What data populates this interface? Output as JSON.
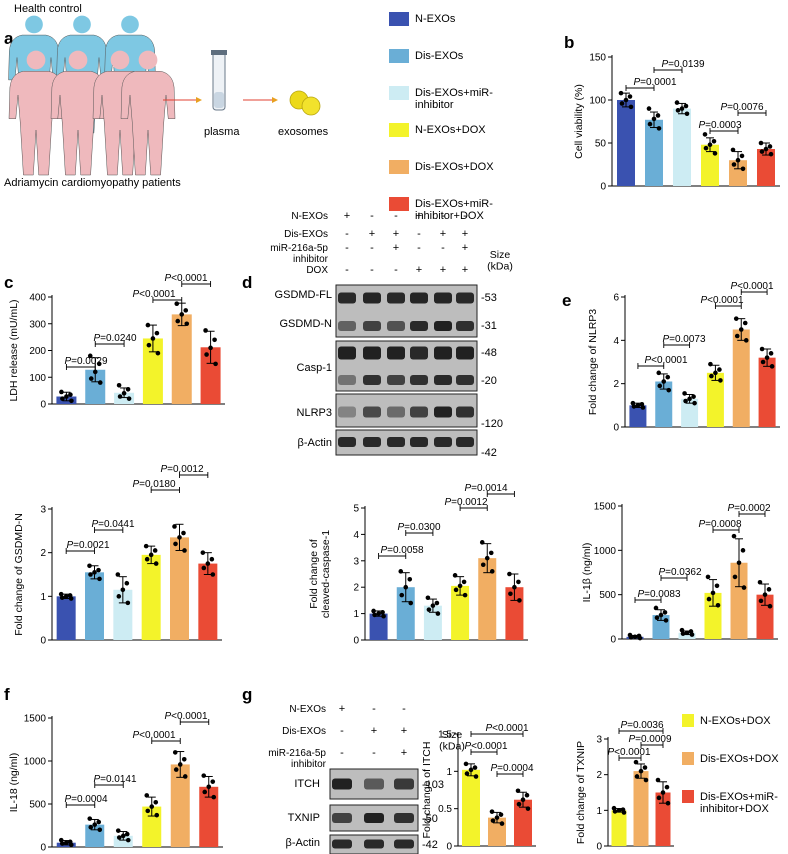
{
  "colors": {
    "n_exos": "#3a52b0",
    "dis_exos": "#6aaed6",
    "inhibitor": "#cdecf3",
    "n_dox": "#f3f32a",
    "dis_dox": "#f1ae63",
    "inh_dox": "#ea4b35",
    "blot_bg": "#bdbdbd",
    "band": "#181818"
  },
  "panel_letters": {
    "a": "a",
    "b": "b",
    "c": "c",
    "d": "d",
    "e": "e",
    "f": "f",
    "g": "g"
  },
  "panel_a": {
    "health_control": "Health control",
    "patients": "Adriamycin cardiomyopathy patients",
    "plasma": "plasma",
    "exosomes": "exosomes"
  },
  "legend_top": [
    {
      "label": "N-EXOs",
      "color": "#3a52b0"
    },
    {
      "label": "Dis-EXOs",
      "color": "#6aaed6"
    },
    {
      "label": "Dis-EXOs+miR-\ninhibitor",
      "color": "#cdecf3"
    },
    {
      "label": "N-EXOs+DOX",
      "color": "#f3f32a"
    },
    {
      "label": "Dis-EXOs+DOX",
      "color": "#f1ae63"
    },
    {
      "label": "Dis-EXOs+miR-\ninhibitor+DOX",
      "color": "#ea4b35"
    }
  ],
  "legend_g": [
    {
      "label": "N-EXOs+DOX",
      "color": "#f3f32a"
    },
    {
      "label": "Dis-EXOs+DOX",
      "color": "#f1ae63"
    },
    {
      "label": "Dis-EXOs+miR-\ninhibitor+DOX",
      "color": "#ea4b35"
    }
  ],
  "blot_d": {
    "conditions": [
      {
        "label": "N-EXOs",
        "marks": [
          "+",
          "-",
          "-",
          "+",
          "-",
          "-"
        ]
      },
      {
        "label": "Dis-EXOs",
        "marks": [
          "-",
          "+",
          "+",
          "-",
          "+",
          "+"
        ]
      },
      {
        "label": "miR-216a-5p\ninhibitor",
        "marks": [
          "-",
          "-",
          "+",
          "-",
          "-",
          "+"
        ]
      },
      {
        "label": "DOX",
        "marks": [
          "-",
          "-",
          "-",
          "+",
          "+",
          "+"
        ]
      }
    ],
    "size_header": "Size\n(kDa)",
    "proteins": [
      "GSDMD-FL",
      "GSDMD-N",
      "Casp-1",
      "NLRP3",
      "β-Actin"
    ],
    "sizes": [
      "-53",
      "-31",
      "-48",
      "-20",
      "-120",
      "-42"
    ]
  },
  "blot_g": {
    "conditions": [
      {
        "label": "N-EXOs",
        "marks": [
          "+",
          "-",
          "-"
        ]
      },
      {
        "label": "Dis-EXOs",
        "marks": [
          "-",
          "+",
          "+"
        ]
      },
      {
        "label": "miR-216a-5p\ninhibitor",
        "marks": [
          "-",
          "-",
          "+"
        ]
      }
    ],
    "size_header": "Size\n(kDa)",
    "proteins": [
      "ITCH",
      "TXNIP",
      "β-Actin"
    ],
    "sizes": [
      "-103",
      "-50",
      "-42"
    ]
  },
  "chart_data": [
    {
      "id": "b",
      "type": "bar",
      "ylabel": "Cell viability (%)",
      "ylim": [
        0,
        150
      ],
      "yticks": [
        0,
        50,
        100,
        150
      ],
      "categories": [
        "N-EXOs",
        "Dis-EXOs",
        "Dis-EXOs+miR-inhibitor",
        "N-EXOs+DOX",
        "Dis-EXOs+DOX",
        "Dis-EXOs+miR-inhibitor+DOX"
      ],
      "values": [
        100,
        77,
        90,
        48,
        30,
        43
      ],
      "errors": [
        8,
        9,
        6,
        8,
        10,
        7
      ],
      "points": [
        [
          108,
          104,
          100,
          96,
          92
        ],
        [
          90,
          82,
          78,
          72,
          67
        ],
        [
          97,
          93,
          90,
          88,
          84
        ],
        [
          60,
          52,
          48,
          44,
          38
        ],
        [
          42,
          35,
          30,
          25,
          20
        ],
        [
          50,
          46,
          43,
          40,
          37
        ]
      ],
      "annotations": [
        {
          "text": "P=0.0001",
          "from": 0,
          "to": 1
        },
        {
          "text": "P=0.0139",
          "from": 1,
          "to": 2
        },
        {
          "text": "P=0.0003",
          "from": 3,
          "to": 4
        },
        {
          "text": "P=0.0076",
          "from": 4,
          "to": 5
        }
      ]
    },
    {
      "id": "c",
      "type": "bar",
      "ylabel": "LDH release (mU/mL)",
      "ylim": [
        0,
        400
      ],
      "yticks": [
        0,
        100,
        200,
        300,
        400
      ],
      "categories": [
        "N-EXOs",
        "Dis-EXOs",
        "Dis-EXOs+miR-inhibitor",
        "N-EXOs+DOX",
        "Dis-EXOs+DOX",
        "Dis-EXOs+miR-inhibitor+DOX"
      ],
      "values": [
        28,
        128,
        42,
        245,
        335,
        212
      ],
      "errors": [
        16,
        45,
        18,
        50,
        42,
        60
      ],
      "points": [
        [
          45,
          35,
          28,
          20,
          12
        ],
        [
          180,
          150,
          120,
          95,
          80
        ],
        [
          70,
          55,
          40,
          28,
          20
        ],
        [
          295,
          265,
          245,
          220,
          190
        ],
        [
          375,
          350,
          335,
          310,
          300
        ],
        [
          275,
          240,
          210,
          185,
          150
        ]
      ],
      "annotations": [
        {
          "text": "P=0.0029",
          "from": 0,
          "to": 1
        },
        {
          "text": "P=0.0240",
          "from": 1,
          "to": 2
        },
        {
          "text": "P<0.0001",
          "from": 3,
          "to": 4
        },
        {
          "text": "P<0.0001",
          "from": 4,
          "to": 5
        }
      ]
    },
    {
      "id": "nlrp3",
      "type": "bar",
      "ylabel": "Fold change of NLRP3",
      "ylim": [
        0,
        6
      ],
      "yticks": [
        0,
        2,
        4,
        6
      ],
      "categories": [
        "N-EXOs",
        "Dis-EXOs",
        "Dis-EXOs+miR-inhibitor",
        "N-EXOs+DOX",
        "Dis-EXOs+DOX",
        "Dis-EXOs+miR-inhibitor+DOX"
      ],
      "values": [
        1.0,
        2.1,
        1.3,
        2.5,
        4.5,
        3.2
      ],
      "errors": [
        0.1,
        0.35,
        0.2,
        0.35,
        0.5,
        0.4
      ],
      "points": [
        [
          1.1,
          1.05,
          1.0,
          0.95,
          0.9
        ],
        [
          2.5,
          2.3,
          2.1,
          1.9,
          1.7
        ],
        [
          1.55,
          1.4,
          1.3,
          1.2,
          1.1
        ],
        [
          2.9,
          2.65,
          2.5,
          2.35,
          2.15
        ],
        [
          5.0,
          4.8,
          4.5,
          4.2,
          4.0
        ],
        [
          3.6,
          3.4,
          3.2,
          3.0,
          2.8
        ]
      ],
      "annotations": [
        {
          "text": "P<0.0001",
          "from": 0,
          "to": 1
        },
        {
          "text": "P=0.0073",
          "from": 1,
          "to": 2
        },
        {
          "text": "P<0.0001",
          "from": 3,
          "to": 4
        },
        {
          "text": "P<0.0001",
          "from": 4,
          "to": 5
        }
      ]
    },
    {
      "id": "gsdmd",
      "type": "bar",
      "ylabel": "Fold change of GSDMD-N",
      "ylim": [
        0,
        3
      ],
      "yticks": [
        0,
        1,
        2,
        3
      ],
      "categories": [
        "N-EXOs",
        "Dis-EXOs",
        "Dis-EXOs+miR-inhibitor",
        "N-EXOs+DOX",
        "Dis-EXOs+DOX",
        "Dis-EXOs+miR-inhibitor+DOX"
      ],
      "values": [
        1.0,
        1.55,
        1.15,
        1.95,
        2.35,
        1.75
      ],
      "errors": [
        0.05,
        0.15,
        0.3,
        0.2,
        0.3,
        0.25
      ],
      "points": [
        [
          1.05,
          1.02,
          1.0,
          0.97,
          0.95
        ],
        [
          1.7,
          1.6,
          1.55,
          1.5,
          1.4
        ],
        [
          1.5,
          1.3,
          1.15,
          1.0,
          0.85
        ],
        [
          2.15,
          2.05,
          1.95,
          1.85,
          1.75
        ],
        [
          2.6,
          2.45,
          2.35,
          2.2,
          2.05
        ],
        [
          2.0,
          1.85,
          1.75,
          1.65,
          1.5
        ]
      ],
      "annotations": [
        {
          "text": "P=0.0021",
          "from": 0,
          "to": 1
        },
        {
          "text": "P=0.0441",
          "from": 1,
          "to": 2
        },
        {
          "text": "P=0.0180",
          "from": 3,
          "to": 4
        },
        {
          "text": "P=0.0012",
          "from": 4,
          "to": 5
        }
      ]
    },
    {
      "id": "casp",
      "type": "bar",
      "ylabel": "Fold change of\ncleaved-caspase-1",
      "ylim": [
        0,
        5
      ],
      "yticks": [
        0,
        1,
        2,
        3,
        4,
        5
      ],
      "categories": [
        "N-EXOs",
        "Dis-EXOs",
        "Dis-EXOs+miR-inhibitor",
        "N-EXOs+DOX",
        "Dis-EXOs+DOX",
        "Dis-EXOs+miR-inhibitor+DOX"
      ],
      "values": [
        1.0,
        2.0,
        1.3,
        2.05,
        3.1,
        2.0
      ],
      "errors": [
        0.1,
        0.55,
        0.25,
        0.35,
        0.55,
        0.5
      ],
      "points": [
        [
          1.1,
          1.05,
          1.0,
          0.95,
          0.9
        ],
        [
          2.6,
          2.3,
          2.0,
          1.7,
          1.4
        ],
        [
          1.6,
          1.4,
          1.3,
          1.15,
          1.0
        ],
        [
          2.45,
          2.2,
          2.05,
          1.9,
          1.7
        ],
        [
          3.7,
          3.3,
          3.1,
          2.85,
          2.6
        ],
        [
          2.5,
          2.2,
          2.0,
          1.75,
          1.5
        ]
      ],
      "annotations": [
        {
          "text": "P=0.0058",
          "from": 0,
          "to": 1
        },
        {
          "text": "P=0.0300",
          "from": 1,
          "to": 2
        },
        {
          "text": "P=0.0012",
          "from": 3,
          "to": 4
        },
        {
          "text": "P=0.0014",
          "from": 4,
          "to": 5
        }
      ]
    },
    {
      "id": "e",
      "type": "bar",
      "ylabel": "IL-1β (ng/ml)",
      "ylim": [
        0,
        1500
      ],
      "yticks": [
        0,
        500,
        1000,
        1500
      ],
      "categories": [
        "N-EXOs",
        "Dis-EXOs",
        "Dis-EXOs+miR-inhibitor",
        "N-EXOs+DOX",
        "Dis-EXOs+DOX",
        "Dis-EXOs+miR-inhibitor+DOX"
      ],
      "values": [
        25,
        270,
        70,
        520,
        860,
        500
      ],
      "errors": [
        15,
        60,
        20,
        150,
        270,
        120
      ],
      "points": [
        [
          45,
          35,
          25,
          18,
          10
        ],
        [
          350,
          300,
          270,
          240,
          210
        ],
        [
          100,
          85,
          70,
          60,
          50
        ],
        [
          700,
          600,
          520,
          450,
          380
        ],
        [
          1160,
          1000,
          860,
          700,
          580
        ],
        [
          640,
          560,
          500,
          430,
          370
        ]
      ],
      "annotations": [
        {
          "text": "P=0.0083",
          "from": 0,
          "to": 1
        },
        {
          "text": "P=0.0362",
          "from": 1,
          "to": 2
        },
        {
          "text": "P=0.0008",
          "from": 3,
          "to": 4
        },
        {
          "text": "P=0.0002",
          "from": 4,
          "to": 5
        }
      ]
    },
    {
      "id": "f",
      "type": "bar",
      "ylabel": "IL-18 (ng/ml)",
      "ylim": [
        0,
        1500
      ],
      "yticks": [
        0,
        500,
        1000,
        1500
      ],
      "categories": [
        "N-EXOs",
        "Dis-EXOs",
        "Dis-EXOs+miR-inhibitor",
        "N-EXOs+DOX",
        "Dis-EXOs+DOX",
        "Dis-EXOs+miR-inhibitor+DOX"
      ],
      "values": [
        50,
        260,
        130,
        470,
        960,
        700
      ],
      "errors": [
        25,
        60,
        50,
        110,
        150,
        120
      ],
      "points": [
        [
          80,
          60,
          50,
          40,
          25
        ],
        [
          330,
          290,
          260,
          230,
          200
        ],
        [
          190,
          150,
          130,
          110,
          80
        ],
        [
          600,
          520,
          470,
          420,
          370
        ],
        [
          1100,
          1020,
          960,
          900,
          820
        ],
        [
          830,
          760,
          700,
          640,
          580
        ]
      ],
      "annotations": [
        {
          "text": "P=0.0004",
          "from": 0,
          "to": 1
        },
        {
          "text": "P=0.0141",
          "from": 1,
          "to": 2
        },
        {
          "text": "P<0.0001",
          "from": 3,
          "to": 4
        },
        {
          "text": "P<0.0001",
          "from": 4,
          "to": 5
        }
      ]
    },
    {
      "id": "itch",
      "type": "bar",
      "ylabel": "Fold change of ITCH",
      "ylim": [
        0,
        1.5
      ],
      "yticks": [
        0,
        0.5,
        1.0,
        1.5
      ],
      "categories": [
        "N-EXOs+DOX",
        "Dis-EXOs+DOX",
        "Dis-EXOs+miR-inhibitor+DOX"
      ],
      "values": [
        1.02,
        0.38,
        0.62
      ],
      "errors": [
        0.08,
        0.07,
        0.1
      ],
      "points": [
        [
          1.1,
          1.05,
          1.02,
          0.97,
          0.93
        ],
        [
          0.46,
          0.42,
          0.38,
          0.34,
          0.3
        ],
        [
          0.74,
          0.68,
          0.62,
          0.56,
          0.5
        ]
      ],
      "annotations": [
        {
          "text": "P<0.0001",
          "from": 0,
          "to": 1
        },
        {
          "text": "P<0.0001",
          "from": 0,
          "to": 2
        },
        {
          "text": "P=0.0004",
          "from": 1,
          "to": 2
        }
      ]
    },
    {
      "id": "txnip",
      "type": "bar",
      "ylabel": "Fold change of TXNIP",
      "ylim": [
        0,
        3
      ],
      "yticks": [
        0,
        1,
        2,
        3
      ],
      "categories": [
        "N-EXOs+DOX",
        "Dis-EXOs+DOX",
        "Dis-EXOs+miR-inhibitor+DOX"
      ],
      "values": [
        1.0,
        2.1,
        1.5
      ],
      "errors": [
        0.05,
        0.2,
        0.3
      ],
      "points": [
        [
          1.06,
          1.02,
          1.0,
          0.97,
          0.94
        ],
        [
          2.35,
          2.2,
          2.1,
          1.95,
          1.85
        ],
        [
          1.85,
          1.65,
          1.5,
          1.35,
          1.2
        ]
      ],
      "annotations": [
        {
          "text": "P=0.0036",
          "from": 0,
          "to": 2
        },
        {
          "text": "P<0.0001",
          "from": 0,
          "to": 1
        },
        {
          "text": "P=0.0009",
          "from": 1,
          "to": 2
        }
      ]
    }
  ]
}
